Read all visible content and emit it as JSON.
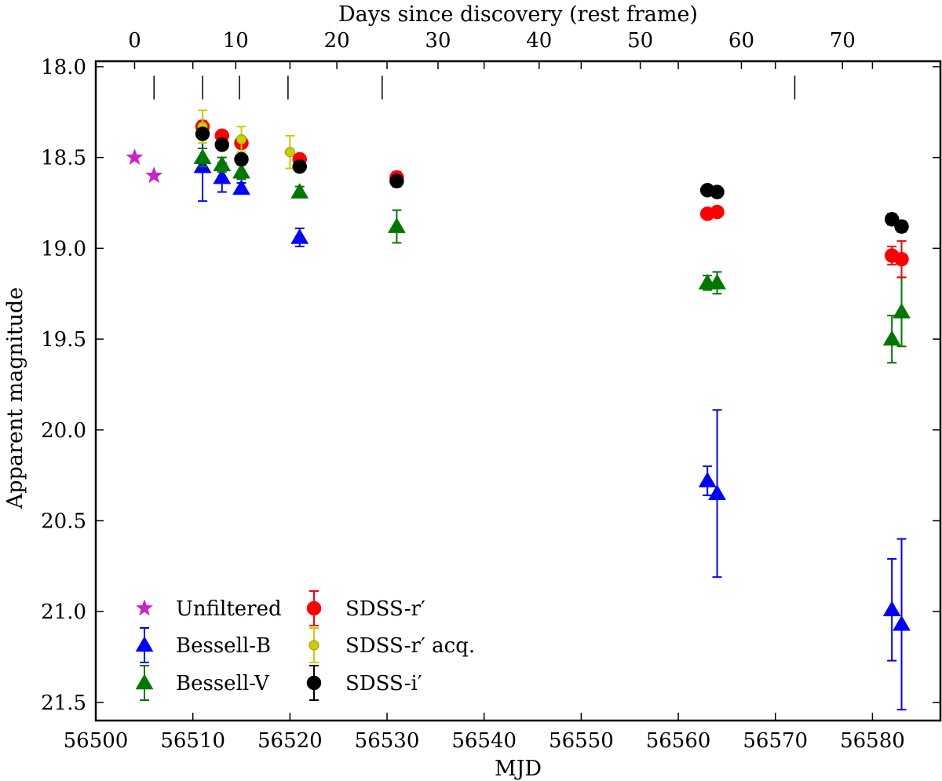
{
  "chart_data": {
    "type": "scatter",
    "xlabel": "MJD",
    "ylabel": "Apparent magnitude",
    "top_xlabel": "Days since discovery (rest frame)",
    "xlim": [
      56500,
      56587
    ],
    "ylim": [
      17.97,
      21.6
    ],
    "y_inverted": true,
    "x_ticks": [
      56500,
      56510,
      56520,
      56530,
      56540,
      56550,
      56560,
      56570,
      56580
    ],
    "x_tick_labels": [
      "56500",
      "56510",
      "56520",
      "56530",
      "56540",
      "56550",
      "56560",
      "56570",
      "56580"
    ],
    "y_ticks": [
      18.0,
      18.5,
      19.0,
      19.5,
      20.0,
      20.5,
      21.0,
      21.5
    ],
    "y_tick_labels": [
      "18.0",
      "18.5",
      "19.0",
      "19.5",
      "20.0",
      "20.5",
      "21.0",
      "21.5"
    ],
    "top_ticks": [
      0,
      10,
      20,
      30,
      40,
      50,
      60,
      70
    ],
    "top_tick_labels": [
      "0",
      "10",
      "20",
      "30",
      "40",
      "50",
      "60",
      "70"
    ],
    "top_axis_zero_mjd": 56504,
    "top_axis_days_per_mjd": 0.96,
    "spectra_epochs_mjd": [
      56506,
      56511,
      56514.8,
      56519.8,
      56529.5,
      56572
    ],
    "series": [
      {
        "name": "Unfiltered",
        "marker": "star",
        "color": "#cc22cc",
        "points": [
          {
            "x": 56504,
            "y": 18.5
          },
          {
            "x": 56506,
            "y": 18.6
          }
        ]
      },
      {
        "name": "Bessell-B",
        "marker": "triangle",
        "color": "#0000ff",
        "points": [
          {
            "x": 56511,
            "y": 18.55,
            "err": 0.19
          },
          {
            "x": 56513,
            "y": 18.61,
            "err": 0.08
          },
          {
            "x": 56515,
            "y": 18.67,
            "err": 0.03
          },
          {
            "x": 56521,
            "y": 18.94,
            "err": 0.05
          },
          {
            "x": 56563,
            "y": 20.28,
            "err": 0.08
          },
          {
            "x": 56564,
            "y": 20.35,
            "err": 0.46
          },
          {
            "x": 56582,
            "y": 20.99,
            "err": 0.28
          },
          {
            "x": 56583,
            "y": 21.07,
            "err": 0.47
          }
        ]
      },
      {
        "name": "Bessell-V",
        "marker": "triangle",
        "color": "#007700",
        "points": [
          {
            "x": 56511,
            "y": 18.5,
            "err": 0.05
          },
          {
            "x": 56513,
            "y": 18.54,
            "err": 0.04
          },
          {
            "x": 56515,
            "y": 18.58,
            "err": 0.04
          },
          {
            "x": 56521,
            "y": 18.69,
            "err": 0.03
          },
          {
            "x": 56531,
            "y": 18.88,
            "err": 0.09
          },
          {
            "x": 56563,
            "y": 19.19,
            "err": 0.04
          },
          {
            "x": 56564,
            "y": 19.19,
            "err": 0.06
          },
          {
            "x": 56582,
            "y": 19.5,
            "err": 0.13
          },
          {
            "x": 56583,
            "y": 19.35,
            "err": 0.19
          }
        ]
      },
      {
        "name": "SDSS-r′",
        "marker": "circle",
        "color": "#ff0000",
        "points": [
          {
            "x": 56511,
            "y": 18.33,
            "err": 0.03
          },
          {
            "x": 56513,
            "y": 18.38,
            "err": 0.02
          },
          {
            "x": 56515,
            "y": 18.42,
            "err": 0.02
          },
          {
            "x": 56521,
            "y": 18.51,
            "err": 0.02
          },
          {
            "x": 56531,
            "y": 18.61,
            "err": 0.03
          },
          {
            "x": 56563,
            "y": 18.81,
            "err": 0.02
          },
          {
            "x": 56564,
            "y": 18.8,
            "err": 0.02
          },
          {
            "x": 56582,
            "y": 19.04,
            "err": 0.05
          },
          {
            "x": 56583,
            "y": 19.06,
            "err": 0.1
          }
        ]
      },
      {
        "name": "SDSS-r′ acq.",
        "marker": "small-circle",
        "color": "#cccc00",
        "points": [
          {
            "x": 56511,
            "y": 18.33,
            "err": 0.09
          },
          {
            "x": 56515,
            "y": 18.4,
            "err": 0.07
          },
          {
            "x": 56520,
            "y": 18.47,
            "err": 0.09
          }
        ]
      },
      {
        "name": "SDSS-i′",
        "marker": "circle",
        "color": "#000000",
        "points": [
          {
            "x": 56511,
            "y": 18.37,
            "err": 0.02
          },
          {
            "x": 56513,
            "y": 18.43,
            "err": 0.02
          },
          {
            "x": 56515,
            "y": 18.51,
            "err": 0.02
          },
          {
            "x": 56521,
            "y": 18.55,
            "err": 0.02
          },
          {
            "x": 56531,
            "y": 18.63,
            "err": 0.03
          },
          {
            "x": 56563,
            "y": 18.68,
            "err": 0.02
          },
          {
            "x": 56564,
            "y": 18.69,
            "err": 0.02
          },
          {
            "x": 56582,
            "y": 18.84,
            "err": 0.03
          },
          {
            "x": 56583,
            "y": 18.88,
            "err": 0.03
          }
        ]
      }
    ],
    "legend": {
      "location": "lower-left",
      "columns": 2,
      "entries": [
        {
          "label": "Unfiltered",
          "series": "Unfiltered"
        },
        {
          "label": "Bessell-B",
          "series": "Bessell-B"
        },
        {
          "label": "Bessell-V",
          "series": "Bessell-V"
        },
        {
          "label": "SDSS-r′",
          "series": "SDSS-r′"
        },
        {
          "label": "SDSS-r′ acq.",
          "series": "SDSS-r′ acq."
        },
        {
          "label": "SDSS-i′",
          "series": "SDSS-i′"
        }
      ]
    }
  }
}
